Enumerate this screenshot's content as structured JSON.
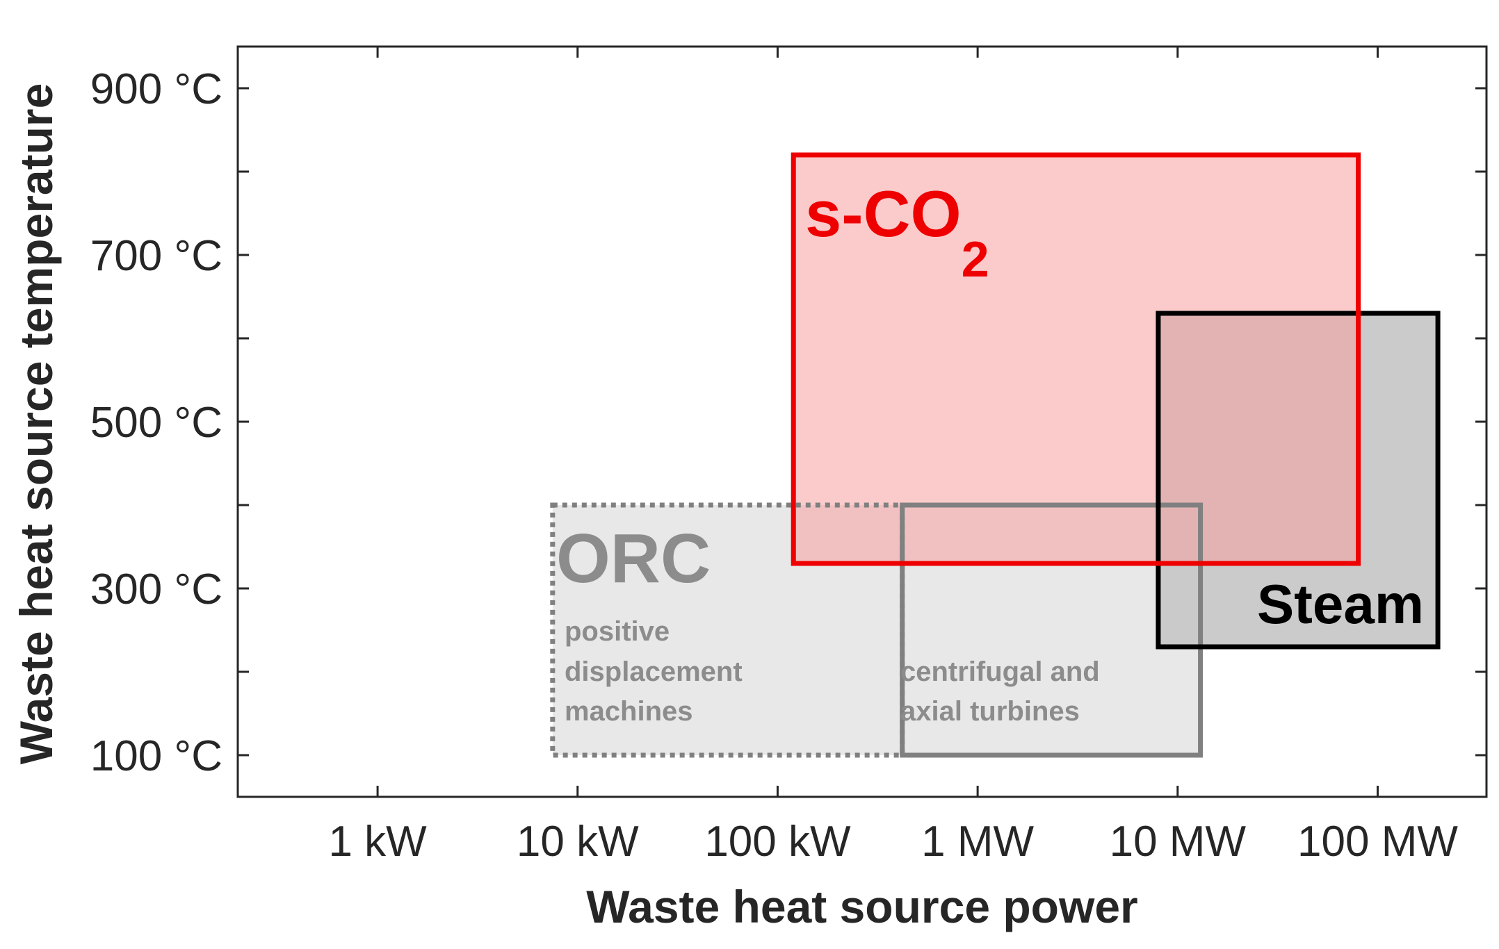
{
  "chart_data": {
    "type": "region",
    "xlabel": "Waste heat source power",
    "ylabel": "Waste heat source temperature",
    "x_scale": "log",
    "x_unit": "W",
    "xlim": [
      200,
      350000000
    ],
    "ylim": [
      50,
      950
    ],
    "x_ticks": [
      {
        "value": 1000,
        "label": "1 kW"
      },
      {
        "value": 10000,
        "label": "10 kW"
      },
      {
        "value": 100000,
        "label": "100 kW"
      },
      {
        "value": 1000000,
        "label": "1 MW"
      },
      {
        "value": 10000000,
        "label": "10 MW"
      },
      {
        "value": 100000000,
        "label": "100 MW"
      }
    ],
    "y_ticks": [
      {
        "value": 100,
        "label": "100 °C"
      },
      {
        "value": 300,
        "label": "300 °C"
      },
      {
        "value": 500,
        "label": "500 °C"
      },
      {
        "value": 700,
        "label": "700 °C"
      },
      {
        "value": 900,
        "label": "900 °C"
      }
    ],
    "y_minor_ticks": [
      200,
      400,
      600,
      800
    ],
    "grid": false,
    "regions": [
      {
        "name": "ORC positive displacement machines",
        "x_range": [
          7500,
          420000
        ],
        "y_range": [
          100,
          400
        ],
        "border": "dotted",
        "edge_color": "#808080",
        "fill_color": "#e6e6e6"
      },
      {
        "name": "ORC centrifugal and axial turbines",
        "x_range": [
          420000,
          13000000
        ],
        "y_range": [
          100,
          400
        ],
        "border": "solid",
        "edge_color": "#808080",
        "fill_color": "#e6e6e6"
      },
      {
        "name": "Steam",
        "x_range": [
          8000000,
          200000000
        ],
        "y_range": [
          230,
          630
        ],
        "border": "solid",
        "edge_color": "#000000",
        "fill_color": "#c8c8c8"
      },
      {
        "name": "s-CO2",
        "x_range": [
          120000,
          80000000
        ],
        "y_range": [
          330,
          820
        ],
        "border": "solid",
        "edge_color": "#ee0000",
        "fill_color": "#f8a0a0"
      }
    ],
    "annotations": {
      "orc_title": "ORC",
      "orc_pd_lines": [
        "positive",
        "displacement",
        "machines"
      ],
      "orc_turb_lines": [
        "centrifugal and",
        "axial turbines"
      ],
      "steam_label": "Steam",
      "sco2_label": "s-CO",
      "sco2_subscript": "2"
    }
  }
}
